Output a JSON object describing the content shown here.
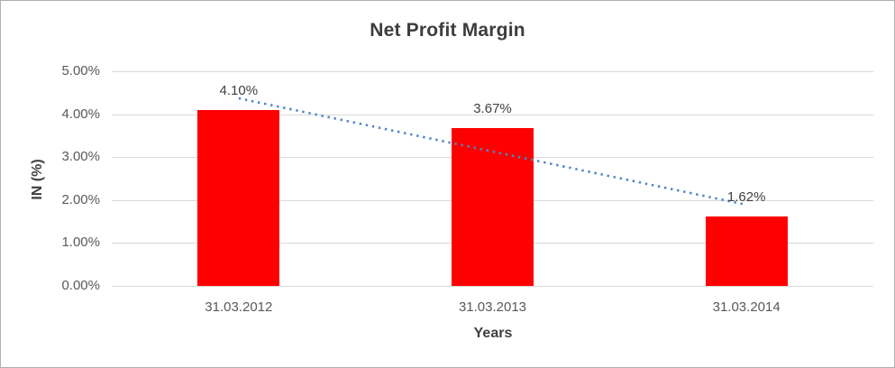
{
  "chart_data": {
    "type": "bar",
    "title": "Net Profit Margin",
    "xlabel": "Years",
    "ylabel": "IN (%)",
    "categories": [
      "31.03.2012",
      "31.03.2013",
      "31.03.2014"
    ],
    "values": [
      4.1,
      3.67,
      1.62
    ],
    "data_labels": [
      "4.10%",
      "3.67%",
      "1.62%"
    ],
    "y_ticks": [
      "0.00%",
      "1.00%",
      "2.00%",
      "3.00%",
      "4.00%",
      "5.00%"
    ],
    "ylim": [
      0,
      5
    ],
    "grid": true,
    "legend": "none",
    "bar_color": "#FF0000",
    "gridline_color": "#D9D9D9",
    "text_color": "#595959",
    "trendline": {
      "type": "linear",
      "style": "dotted",
      "color": "#4E86C8",
      "start_value": 4.37,
      "end_value": 1.89
    }
  }
}
